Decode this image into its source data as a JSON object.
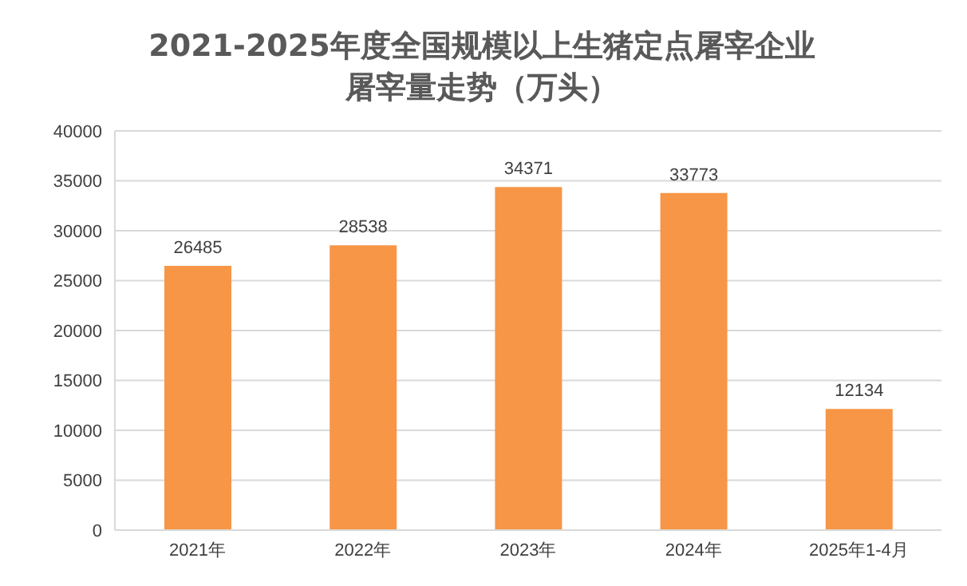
{
  "chart_data": {
    "type": "bar",
    "title": "2021-2025年度全国规模以上生猪定点屠宰企业屠宰量走势（万头）",
    "categories": [
      "2021年",
      "2022年",
      "2023年",
      "2024年",
      "2025年1-4月"
    ],
    "values": [
      26485,
      28538,
      34371,
      33773,
      12134
    ],
    "color": "#f79646",
    "ylim": [
      0,
      40000
    ],
    "yticks": [
      0,
      5000,
      10000,
      15000,
      20000,
      25000,
      30000,
      35000,
      40000
    ],
    "grid": "y",
    "legend": false,
    "data_labels": true
  }
}
